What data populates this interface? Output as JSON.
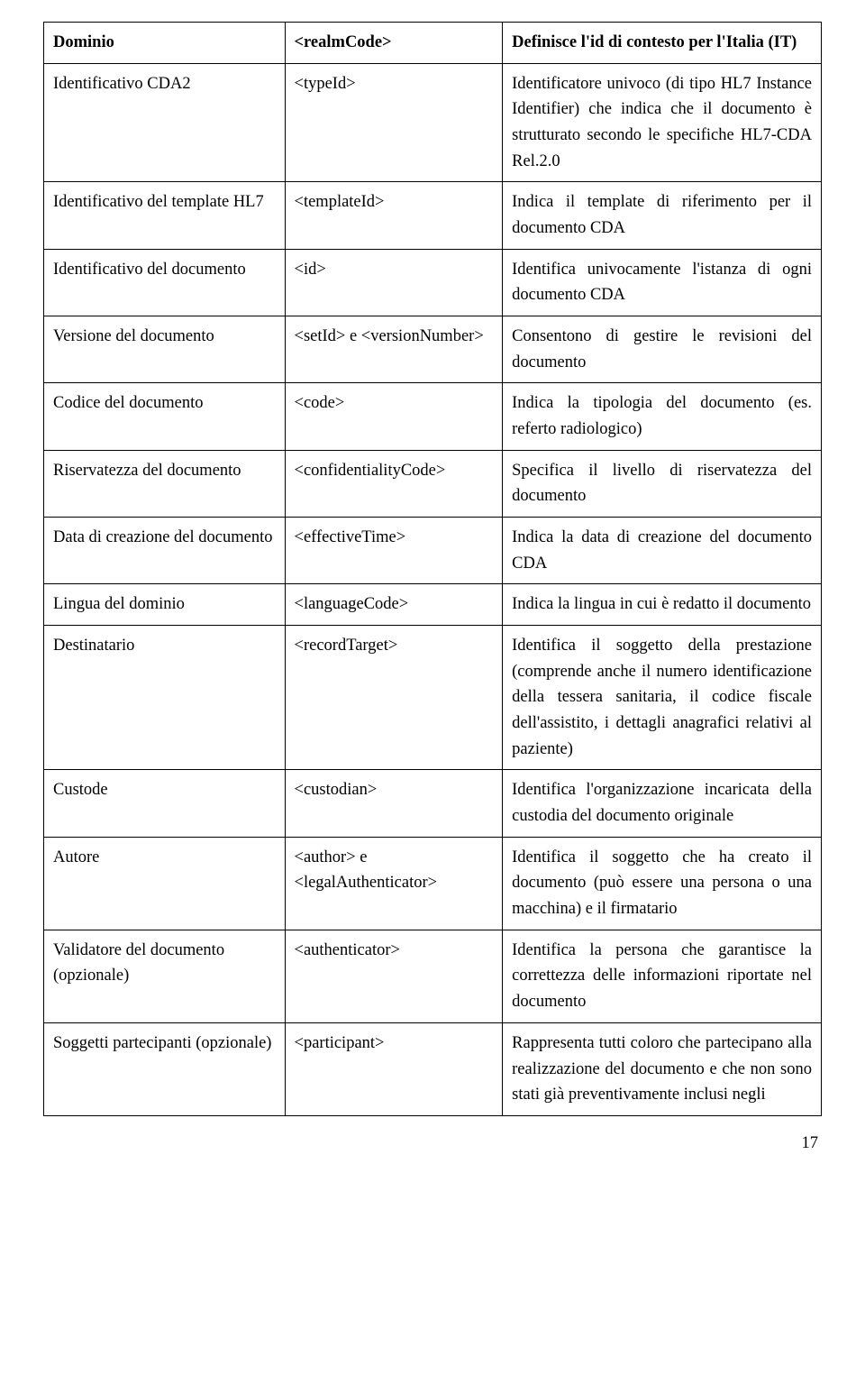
{
  "table": {
    "rows": [
      {
        "c1": "Dominio",
        "c2": "<realmCode>",
        "c3": "Definisce l'id di contesto per l'Italia (IT)",
        "header": true
      },
      {
        "c1": "Identificativo CDA2",
        "c2": "<typeId>",
        "c3": "Identificatore univoco (di tipo HL7 Instance Identifier) che indica che il documento è strutturato secondo le specifiche HL7-CDA Rel.2.0"
      },
      {
        "c1": "Identificativo del template HL7",
        "c2": "<templateId>",
        "c3": "Indica il template di riferimento per il documento CDA"
      },
      {
        "c1": "Identificativo del documento",
        "c2": "<id>",
        "c3": "Identifica univocamente l'istanza di ogni documento CDA"
      },
      {
        "c1": "Versione del documento",
        "c2": "<setId> e <versionNumber>",
        "c3": "Consentono di gestire le revisioni del documento"
      },
      {
        "c1": "Codice del documento",
        "c2": "<code>",
        "c3": "Indica la tipologia del documento (es. referto radiologico)"
      },
      {
        "c1": "Riservatezza del documento",
        "c2": "<confidentialityCode>",
        "c3": "Specifica il livello di riservatezza del documento"
      },
      {
        "c1": "Data di creazione del documento",
        "c2": "<effectiveTime>",
        "c3": "Indica la data di creazione del documento CDA"
      },
      {
        "c1": "Lingua del dominio",
        "c2": "<languageCode>",
        "c3": "Indica la lingua in cui è redatto il documento"
      },
      {
        "c1": "Destinatario",
        "c2": "<recordTarget>",
        "c3": "Identifica il soggetto della prestazione (comprende anche il numero identificazione della tessera sanitaria, il codice fiscale dell'assistito, i dettagli anagrafici relativi al paziente)"
      },
      {
        "c1": "Custode",
        "c2": "<custodian>",
        "c3": "Identifica l'organizzazione incaricata della custodia del documento originale"
      },
      {
        "c1": "Autore",
        "c2": "<author> e <legalAuthenticator>",
        "c3": "Identifica il soggetto che ha creato il documento (può essere una persona o una macchina) e  il firmatario"
      },
      {
        "c1": "Validatore del documento (opzionale)",
        "c2": "<authenticator>",
        "c3": "Identifica la persona che garantisce la correttezza delle informazioni riportate nel documento"
      },
      {
        "c1": "Soggetti partecipanti (opzionale)",
        "c2": "<participant>",
        "c3": "Rappresenta tutti coloro che partecipano alla realizzazione del documento e che non sono stati già preventivamente inclusi negli"
      }
    ]
  },
  "page_number": "17"
}
